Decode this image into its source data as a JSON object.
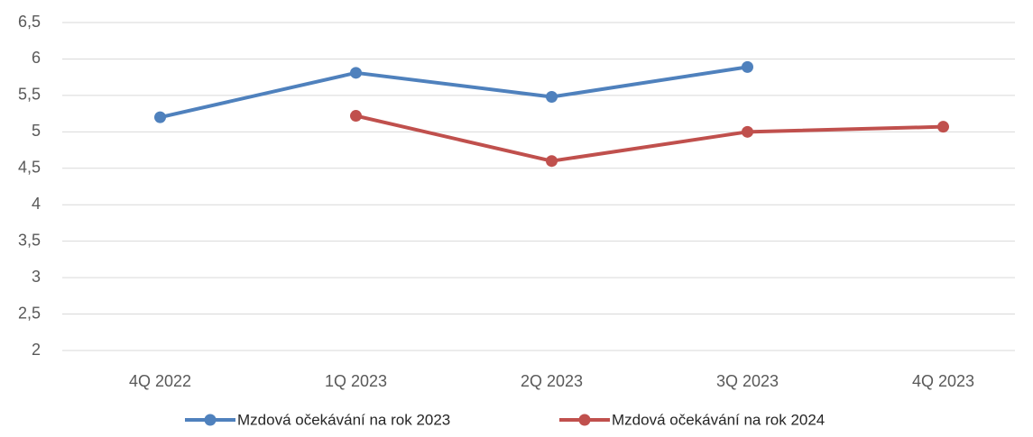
{
  "chart_data": {
    "type": "line",
    "categories": [
      "4Q 2022",
      "1Q 2023",
      "2Q 2023",
      "3Q 2023",
      "4Q 2023"
    ],
    "series": [
      {
        "name": "Mzdová očekávání na rok 2023",
        "color": "#4f81bd",
        "values": [
          5.2,
          5.81,
          5.48,
          5.89,
          null
        ]
      },
      {
        "name": "Mzdová očekávání na rok 2024",
        "color": "#c0504d",
        "values": [
          null,
          5.22,
          4.6,
          5.0,
          5.07
        ]
      }
    ],
    "ylim": [
      2,
      6.5
    ],
    "yticks": [
      2,
      {
        "value": 2.5,
        "label": "2,5"
      },
      3,
      {
        "value": 3.5,
        "label": "3,5"
      },
      4,
      {
        "value": 4.5,
        "label": "4,5"
      },
      5,
      {
        "value": 5.5,
        "label": "5,5"
      },
      6,
      {
        "value": 6.5,
        "label": "6,5"
      }
    ],
    "grid": true,
    "legend": "bottom"
  }
}
